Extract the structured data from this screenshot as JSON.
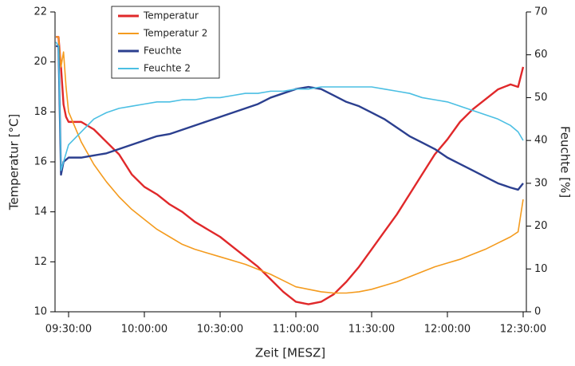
{
  "chart_data": {
    "type": "line",
    "x_label": "Zeit [MESZ]",
    "y_label": "Temperatur [°C]",
    "y2_label": "Feuchte [%]",
    "x": [
      "09:25:00",
      "09:26:00",
      "09:27:00",
      "09:28:00",
      "09:29:00",
      "09:30:00",
      "09:35:00",
      "09:40:00",
      "09:45:00",
      "09:50:00",
      "09:55:00",
      "10:00:00",
      "10:05:00",
      "10:10:00",
      "10:15:00",
      "10:20:00",
      "10:25:00",
      "10:30:00",
      "10:35:00",
      "10:40:00",
      "10:45:00",
      "10:50:00",
      "10:55:00",
      "11:00:00",
      "11:05:00",
      "11:10:00",
      "11:15:00",
      "11:20:00",
      "11:25:00",
      "11:30:00",
      "11:35:00",
      "11:40:00",
      "11:45:00",
      "11:50:00",
      "11:55:00",
      "12:00:00",
      "12:05:00",
      "12:10:00",
      "12:15:00",
      "12:20:00",
      "12:25:00",
      "12:28:00",
      "12:30:00"
    ],
    "xlim": [
      "09:24:38",
      "12:31:16"
    ],
    "xticks": [
      "09:30:00",
      "10:00:00",
      "10:30:00",
      "11:00:00",
      "11:30:00",
      "12:00:00",
      "12:30:00"
    ],
    "ylim": [
      10,
      22
    ],
    "yticks": [
      10,
      12,
      14,
      16,
      18,
      20,
      22
    ],
    "y2lim": [
      0,
      70
    ],
    "y2ticks": [
      0,
      10,
      20,
      30,
      40,
      50,
      60,
      70
    ],
    "legend": "upper left",
    "series": [
      {
        "name": "Temperatur",
        "color": "#e0282a",
        "values": [
          21.0,
          21.0,
          19.8,
          18.3,
          17.8,
          17.6,
          17.6,
          17.3,
          16.8,
          16.3,
          15.5,
          15.0,
          14.7,
          14.3,
          14.0,
          13.6,
          13.3,
          13.0,
          12.6,
          12.2,
          11.8,
          11.3,
          10.8,
          10.4,
          10.3,
          10.4,
          10.7,
          11.2,
          11.8,
          12.5,
          13.2,
          13.9,
          14.7,
          15.5,
          16.3,
          16.9,
          17.6,
          18.1,
          18.5,
          18.9,
          19.1,
          19.0,
          19.8
        ]
      },
      {
        "name": "Temperatur 2",
        "color": "#f49b1e",
        "values": [
          21.0,
          21.0,
          19.8,
          20.4,
          19.0,
          18.0,
          16.8,
          15.9,
          15.2,
          14.6,
          14.1,
          13.7,
          13.3,
          13.0,
          12.7,
          12.5,
          12.35,
          12.2,
          12.05,
          11.9,
          11.7,
          11.5,
          11.25,
          11.0,
          10.9,
          10.8,
          10.75,
          10.75,
          10.8,
          10.9,
          11.05,
          11.2,
          11.4,
          11.6,
          11.8,
          11.95,
          12.1,
          12.3,
          12.5,
          12.75,
          13.0,
          13.2,
          14.5
        ]
      },
      {
        "name": "Feuchte",
        "color": "#2b3f8f",
        "axis": "y2",
        "values": [
          62,
          62,
          32,
          35,
          35.5,
          36,
          36,
          36.5,
          37,
          38,
          39,
          40,
          41,
          41.5,
          42.5,
          43.5,
          44.5,
          45.5,
          46.5,
          47.5,
          48.5,
          50,
          51,
          52,
          52.5,
          52,
          50.5,
          49,
          48,
          46.5,
          45,
          43,
          41,
          39.5,
          38,
          36,
          34.5,
          33,
          31.5,
          30,
          29,
          28.5,
          30
        ]
      },
      {
        "name": "Feuchte 2",
        "color": "#4bbfe3",
        "axis": "y2",
        "values": [
          63,
          62,
          33,
          35,
          37,
          39,
          42,
          45,
          46.5,
          47.5,
          48,
          48.5,
          49,
          49,
          49.5,
          49.5,
          50,
          50,
          50.5,
          51,
          51,
          51.5,
          51.5,
          52,
          52,
          52.5,
          52.5,
          52.5,
          52.5,
          52.5,
          52,
          51.5,
          51,
          50,
          49.5,
          49,
          48,
          47,
          46,
          45,
          43.5,
          42,
          40
        ]
      }
    ]
  }
}
